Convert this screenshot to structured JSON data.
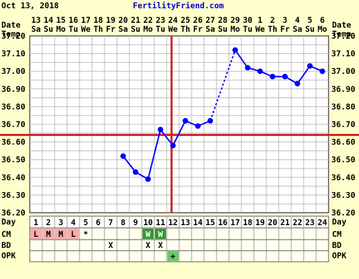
{
  "header": {
    "date_text": "Oct 13, 2018",
    "site_text": "FertilityFriend.com"
  },
  "labels": {
    "date": "Date",
    "temp": "Temp",
    "day": "Day",
    "cm": "CM",
    "bd": "BD",
    "opk": "OPK"
  },
  "colors": {
    "background": "#ffffcc",
    "data_line": "#0000ff",
    "coverline": "#cc2222",
    "site_link": "#0000cc",
    "menses_cell": "#ffaaaa",
    "cm_watery": "#339933",
    "opk_positive": "#66cc66"
  },
  "chart_data": {
    "type": "line",
    "title": "",
    "xlabel": "Day",
    "ylabel": "Temp",
    "ylim": [
      36.2,
      37.2
    ],
    "yticks": [
      "36.20",
      "36.30",
      "36.40",
      "36.50",
      "36.60",
      "36.70",
      "36.80",
      "36.90",
      "37.00",
      "37.10",
      "37.20"
    ],
    "grid": true,
    "cycle_days": [
      1,
      2,
      3,
      4,
      5,
      6,
      7,
      8,
      9,
      10,
      11,
      12,
      13,
      14,
      15,
      16,
      17,
      18,
      19,
      20,
      21,
      22,
      23,
      24
    ],
    "dates": [
      {
        "date": "13",
        "dow": "Sa"
      },
      {
        "date": "14",
        "dow": "Su"
      },
      {
        "date": "15",
        "dow": "Mo"
      },
      {
        "date": "16",
        "dow": "Tu"
      },
      {
        "date": "17",
        "dow": "We"
      },
      {
        "date": "18",
        "dow": "Th"
      },
      {
        "date": "19",
        "dow": "Fr"
      },
      {
        "date": "20",
        "dow": "Sa"
      },
      {
        "date": "21",
        "dow": "Su"
      },
      {
        "date": "22",
        "dow": "Mo"
      },
      {
        "date": "23",
        "dow": "Tu"
      },
      {
        "date": "24",
        "dow": "We"
      },
      {
        "date": "25",
        "dow": "Th"
      },
      {
        "date": "26",
        "dow": "Fr"
      },
      {
        "date": "27",
        "dow": "Sa"
      },
      {
        "date": "28",
        "dow": "Su"
      },
      {
        "date": "29",
        "dow": "Mo"
      },
      {
        "date": "30",
        "dow": "Tu"
      },
      {
        "date": "1",
        "dow": "We"
      },
      {
        "date": "2",
        "dow": "Th"
      },
      {
        "date": "3",
        "dow": "Fr"
      },
      {
        "date": "4",
        "dow": "Sa"
      },
      {
        "date": "5",
        "dow": "Su"
      },
      {
        "date": "6",
        "dow": "Mo"
      }
    ],
    "series": [
      {
        "points": [
          {
            "day": 8,
            "temp": 36.52
          },
          {
            "day": 9,
            "temp": 36.43
          },
          {
            "day": 10,
            "temp": 36.39
          },
          {
            "day": 11,
            "temp": 36.67
          },
          {
            "day": 12,
            "temp": 36.58
          },
          {
            "day": 13,
            "temp": 36.72
          },
          {
            "day": 14,
            "temp": 36.69
          },
          {
            "day": 15,
            "temp": 36.72
          },
          {
            "day": 17,
            "temp": 37.12
          },
          {
            "day": 18,
            "temp": 37.02
          },
          {
            "day": 19,
            "temp": 37.0
          },
          {
            "day": 20,
            "temp": 36.97
          },
          {
            "day": 21,
            "temp": 36.97
          },
          {
            "day": 22,
            "temp": 36.93
          },
          {
            "day": 23,
            "temp": 37.03
          },
          {
            "day": 24,
            "temp": 37.0
          }
        ]
      }
    ],
    "coverline_temp": 36.64,
    "ovulation_day": 12,
    "cm_row": [
      {
        "day": 1,
        "code": "L",
        "style": "menses"
      },
      {
        "day": 2,
        "code": "M",
        "style": "menses"
      },
      {
        "day": 3,
        "code": "M",
        "style": "menses"
      },
      {
        "day": 4,
        "code": "L",
        "style": "menses"
      },
      {
        "day": 5,
        "code": "*",
        "style": "spot"
      },
      {
        "day": 10,
        "code": "W",
        "style": "watery"
      },
      {
        "day": 11,
        "code": "W",
        "style": "watery"
      }
    ],
    "bd_row": [
      {
        "day": 7,
        "code": "X"
      },
      {
        "day": 10,
        "code": "X"
      },
      {
        "day": 11,
        "code": "X"
      }
    ],
    "opk_row": [
      {
        "day": 12,
        "code": "+"
      }
    ]
  }
}
